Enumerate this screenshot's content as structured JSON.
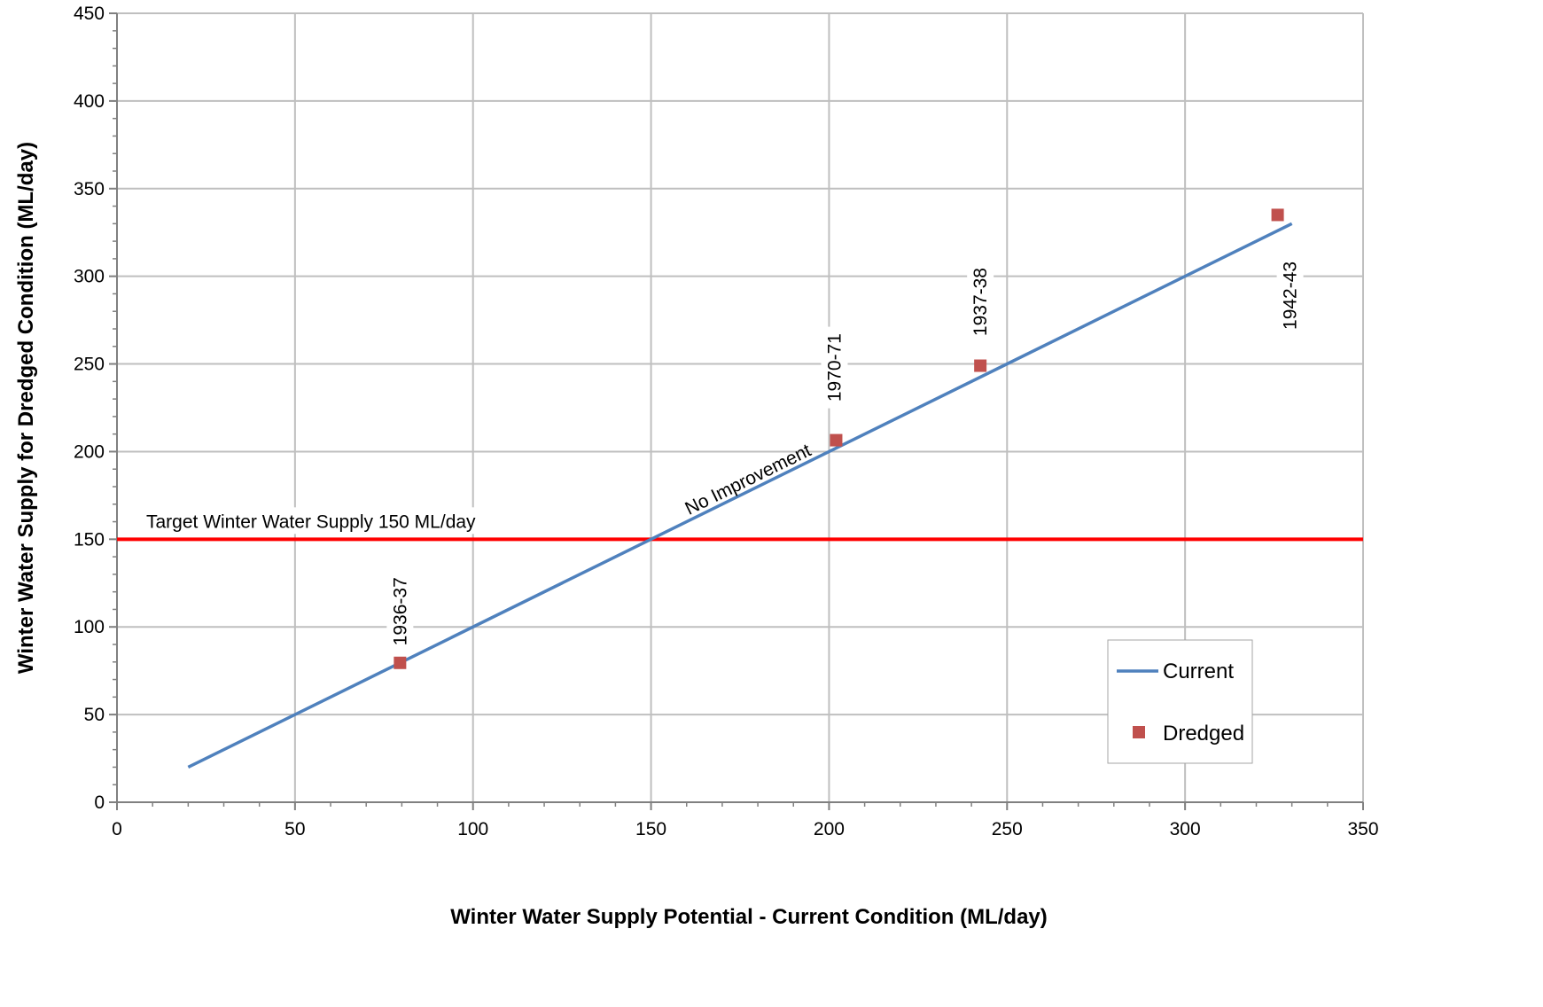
{
  "chart_data": {
    "type": "scatter",
    "xlabel": "Winter Water Supply Potential - Current Condition (ML/day)",
    "ylabel": "Winter Water Supply for Dredged Condition (ML/day)",
    "xlim": [
      0,
      350
    ],
    "ylim": [
      0,
      450
    ],
    "x_ticks": [
      0,
      50,
      100,
      150,
      200,
      250,
      300,
      350
    ],
    "y_ticks": [
      0,
      50,
      100,
      150,
      200,
      250,
      300,
      350,
      400,
      450
    ],
    "grid": true,
    "legend_position": "bottom-right",
    "series": [
      {
        "name": "Current",
        "kind": "line",
        "color": "#4f81bd",
        "points": [
          {
            "x": 20,
            "y": 20
          },
          {
            "x": 330,
            "y": 330
          }
        ]
      },
      {
        "name": "Dredged",
        "kind": "marker",
        "color": "#c0504d",
        "points": [
          {
            "x": 79.5,
            "y": 79.5,
            "label": "1936-37"
          },
          {
            "x": 202,
            "y": 206.5,
            "label": "1970-71"
          },
          {
            "x": 242.5,
            "y": 249,
            "label": "1937-38"
          },
          {
            "x": 326,
            "y": 335,
            "label": "1942-43"
          }
        ]
      }
    ],
    "reference_line": {
      "y": 150,
      "color": "#ff0000",
      "label": "Target Winter Water Supply 150 ML/day"
    },
    "annotations": [
      {
        "text": "No Improvement"
      }
    ]
  }
}
